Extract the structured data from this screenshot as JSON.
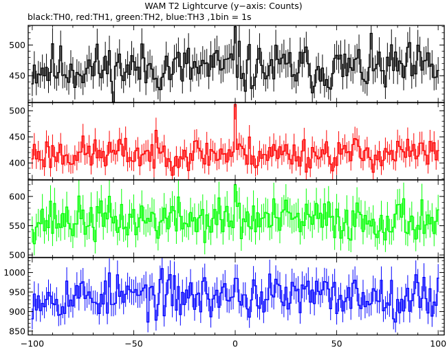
{
  "chart_data": {
    "type": "line",
    "title": "WAM T2 Lightcurve (y−axis: Counts)",
    "subtitle": "black:TH0, red:TH1, green:TH2, blue:TH3 ,1bin = 1s",
    "xlabel": "",
    "ylabel": "",
    "xlim": [
      -102,
      103
    ],
    "x_ticks": [
      -100,
      -50,
      0,
      50,
      100
    ],
    "x_tick_labels": [
      "−100",
      "−50",
      "0",
      "50",
      "100"
    ],
    "grid": false,
    "bin_seconds": 1,
    "x_start": -100,
    "x_end": 100,
    "panels": [
      {
        "channel": "TH0",
        "color": "#000000",
        "ylim": [
          406,
          532
        ],
        "y_ticks": [
          450,
          500
        ],
        "mean": 462,
        "noise": 20,
        "error": 22,
        "spike_x": 0,
        "spike_value": 530,
        "seed": 11
      },
      {
        "channel": "TH1",
        "color": "#ff0000",
        "ylim": [
          368,
          516
        ],
        "y_ticks": [
          400,
          450,
          500
        ],
        "mean": 418,
        "noise": 16,
        "error": 20,
        "spike_x": 0,
        "spike_value": 512,
        "seed": 23
      },
      {
        "channel": "TH2",
        "color": "#00ff00",
        "ylim": [
          496,
          628
        ],
        "y_ticks": [
          500,
          550,
          600
        ],
        "mean": 560,
        "noise": 18,
        "error": 24,
        "spike_x": 0,
        "spike_value": 620,
        "seed": 37
      },
      {
        "channel": "TH3",
        "color": "#0000ff",
        "ylim": [
          840,
          1038
        ],
        "y_ticks": [
          850,
          900,
          950,
          1000
        ],
        "mean": 940,
        "noise": 28,
        "error": 32,
        "spike_x": 0,
        "spike_value": 985,
        "seed": 53
      }
    ]
  }
}
